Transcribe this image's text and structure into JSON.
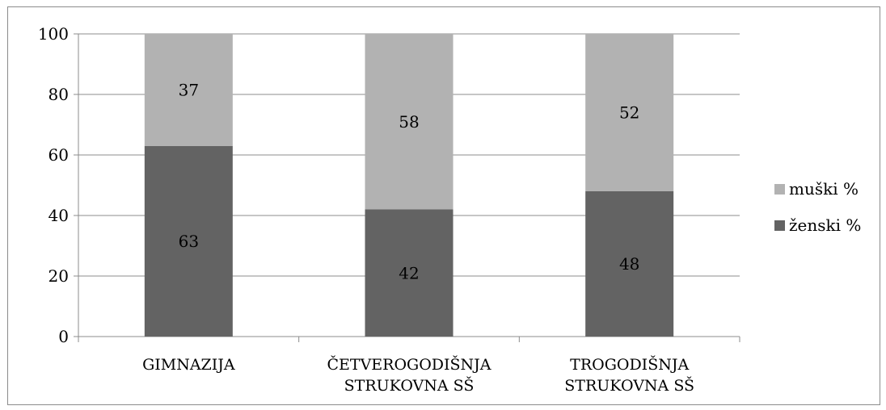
{
  "chart_data": {
    "type": "bar",
    "stacked": true,
    "percent_stacked": true,
    "categories": [
      [
        "GIMNAZIJA"
      ],
      [
        "ČETVEROGODIŠNJA",
        "STRUKOVNA SŠ"
      ],
      [
        "TROGODIŠNJA",
        "STRUKOVNA SŠ"
      ]
    ],
    "series": [
      {
        "name": "ženski %",
        "values": [
          63,
          42,
          48
        ],
        "color": "#636363"
      },
      {
        "name": "muški %",
        "values": [
          37,
          58,
          52
        ],
        "color": "#b2b2b2"
      }
    ],
    "ylim": [
      0,
      100
    ],
    "yticks": [
      0,
      20,
      40,
      60,
      80,
      100
    ],
    "grid": true,
    "data_labels": true,
    "legend_position": "right",
    "legend_order": [
      "muški %",
      "ženski %"
    ],
    "title": "",
    "xlabel": "",
    "ylabel": ""
  }
}
